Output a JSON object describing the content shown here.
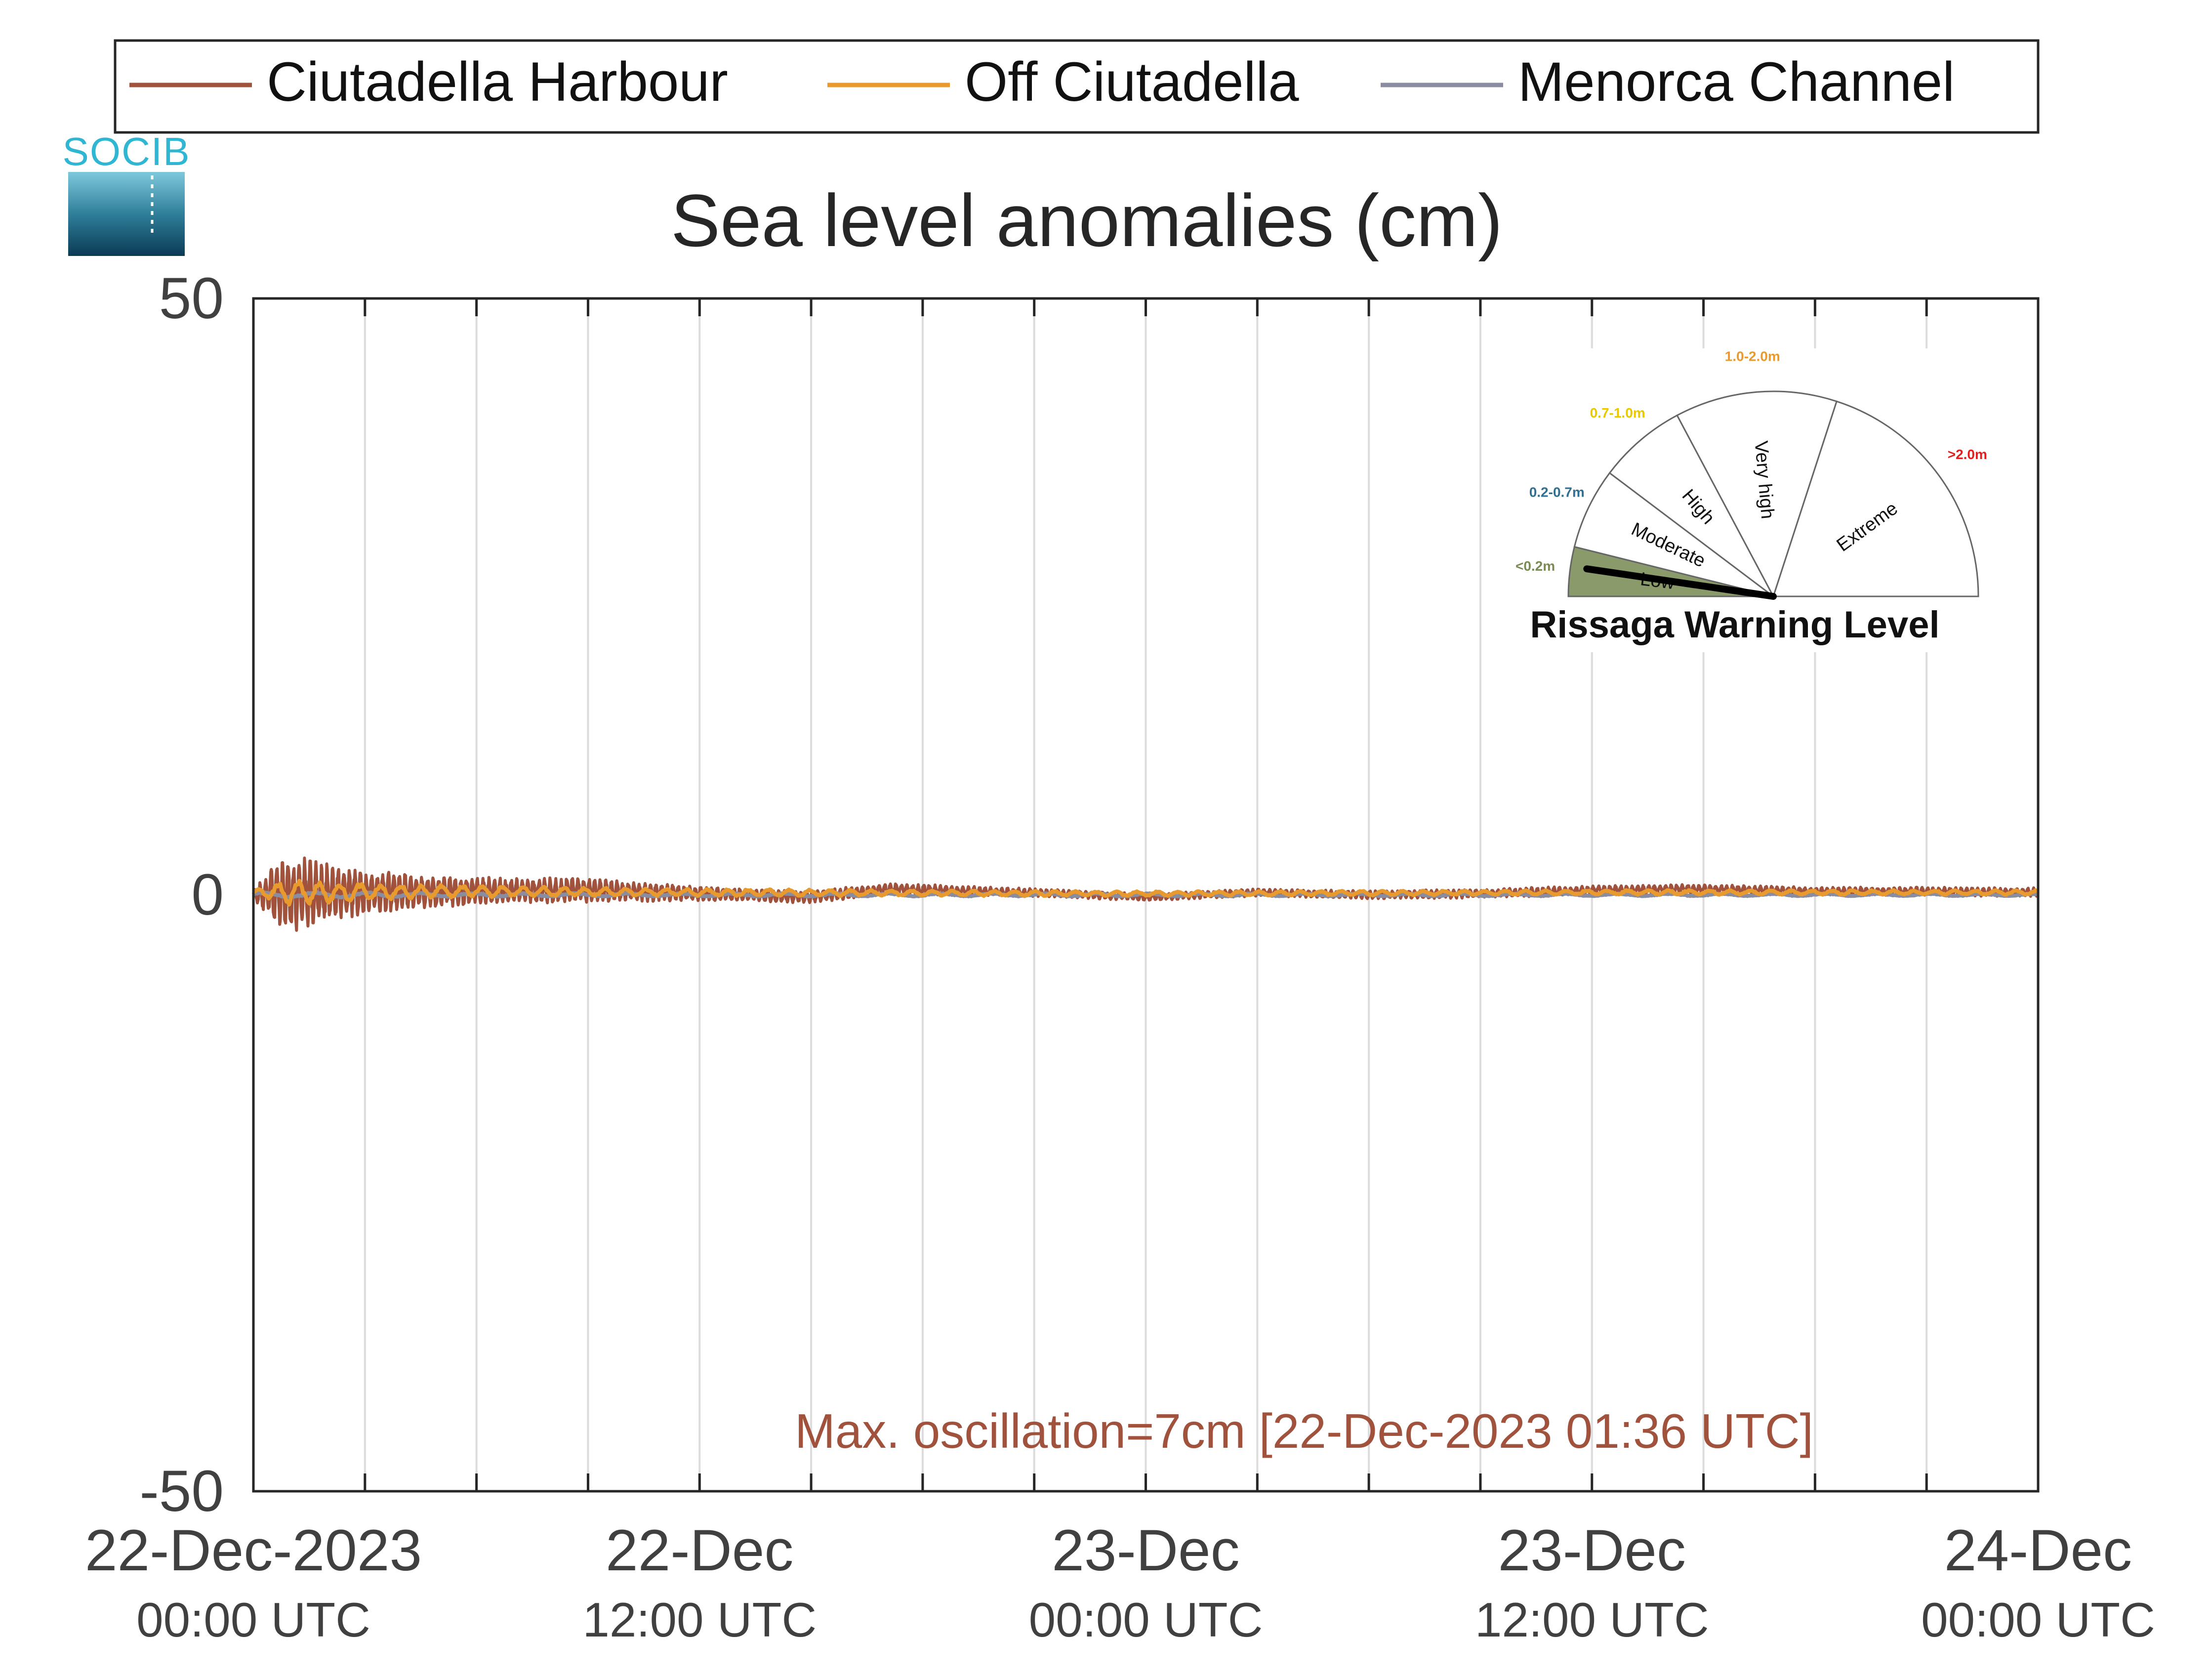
{
  "chart_data": {
    "type": "line",
    "title": "Sea level anomalies (cm)",
    "xlabel": "",
    "ylabel": "",
    "ylim": [
      -50,
      50
    ],
    "yticks": [
      50,
      0,
      -50
    ],
    "xlim_hours": [
      0,
      48
    ],
    "xticks": [
      {
        "hour": 0,
        "date": "22-Dec-2023",
        "time": "00:00 UTC"
      },
      {
        "hour": 12,
        "date": "22-Dec",
        "time": "12:00 UTC"
      },
      {
        "hour": 24,
        "date": "23-Dec",
        "time": "00:00 UTC"
      },
      {
        "hour": 36,
        "date": "23-Dec",
        "time": "12:00 UTC"
      },
      {
        "hour": 48,
        "date": "24-Dec",
        "time": "00:00 UTC"
      }
    ],
    "grid": "vertical",
    "grid_interval_hours": 3,
    "legend_position": "top",
    "series": [
      {
        "name": "Ciutadella Harbour",
        "color": "#a0523d",
        "envelope_hours": [
          0,
          0.5,
          1,
          1.5,
          2,
          3,
          4,
          5,
          6,
          7,
          8,
          9,
          10,
          12,
          14,
          16,
          18,
          20,
          24,
          30,
          36,
          42,
          48
        ],
        "envelope_amplitude_cm": [
          0.3,
          2.5,
          3.2,
          3.0,
          2.5,
          2.0,
          1.6,
          1.4,
          1.2,
          1.1,
          1.1,
          1.1,
          0.9,
          0.6,
          0.5,
          0.5,
          0.45,
          0.35,
          0.3,
          0.35,
          0.4,
          0.35,
          0.4
        ],
        "trend_hours": [
          0,
          3,
          6,
          9,
          12,
          15,
          17,
          21,
          24,
          27,
          30,
          33,
          36,
          39,
          42,
          45,
          48
        ],
        "trend_cm": [
          0,
          0.3,
          0.3,
          0.4,
          0.1,
          -0.2,
          0.5,
          0.2,
          -0.2,
          0.2,
          0,
          0.1,
          0.4,
          0.5,
          0.3,
          0.3,
          0.2
        ]
      },
      {
        "name": "Off Ciutadella",
        "color": "#e89a2e",
        "envelope_hours": [
          0,
          1,
          2,
          4,
          8,
          12,
          24,
          48
        ],
        "envelope_amplitude_cm": [
          0.2,
          1.2,
          0.9,
          0.6,
          0.4,
          0.3,
          0.2,
          0.2
        ],
        "trend_hours": [
          0,
          6,
          12,
          24,
          36,
          48
        ],
        "trend_cm": [
          0.2,
          0.3,
          0.2,
          0.1,
          0.2,
          0.2
        ]
      },
      {
        "name": "Menorca Channel",
        "color": "#8a8ca0",
        "envelope_hours": [
          0,
          2,
          6,
          48
        ],
        "envelope_amplitude_cm": [
          0.2,
          0.25,
          0.15,
          0.1
        ],
        "trend_hours": [
          0,
          48
        ],
        "trend_cm": [
          0,
          0
        ]
      }
    ],
    "annotation": "Max. oscillation=7cm [22-Dec-2023 01:36 UTC]",
    "annotation_color": "#a0523d"
  },
  "logo": {
    "text": "SOCIB"
  },
  "gauge": {
    "title": "Rissaga Warning Level",
    "needle_value_fraction": 0.03,
    "sectors": [
      {
        "label": "Low",
        "range": "<0.2m",
        "range_color": "#7a8a55",
        "fill": "#8a9a6a",
        "active": true
      },
      {
        "label": "Moderate",
        "range": "0.2-0.7m",
        "range_color": "#2f6f8f",
        "fill": "#ffffff",
        "active": false
      },
      {
        "label": "High",
        "range": "0.7-1.0m",
        "range_color": "#e8c800",
        "fill": "#ffffff",
        "active": false
      },
      {
        "label": "Very high",
        "range": "1.0-2.0m",
        "range_color": "#e89a2e",
        "fill": "#ffffff",
        "active": false
      },
      {
        "label": "Extreme",
        "range": ">2.0m",
        "range_color": "#e02020",
        "fill": "#ffffff",
        "active": false
      }
    ]
  }
}
